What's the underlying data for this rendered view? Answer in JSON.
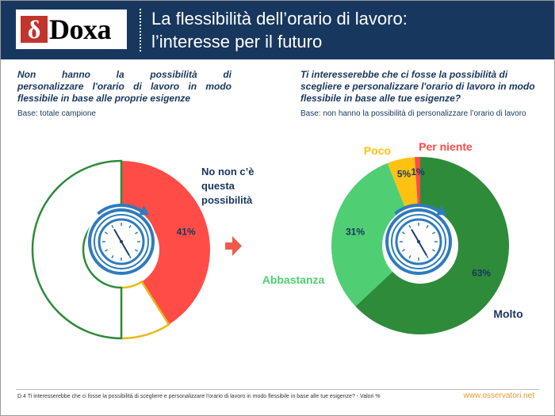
{
  "header": {
    "logo_text": "Doxa",
    "logo_glyph": "δ",
    "title_line1": "La flessibilità dell’orario di lavoro:",
    "title_line2": "l’interesse per il futuro"
  },
  "left_question": {
    "lines": [
      "Non hanno la possibilità di",
      "personalizzare l'orario di lavoro in modo",
      "flessibile in base alle proprie esigenze"
    ],
    "base": "Base: totale campione"
  },
  "right_question": {
    "line1": "Ti interesserebbe che ci fosse la possibilità di scegliere e personalizzare l'orario di lavoro in modo flessibile in base alle tue esigenze?",
    "base": "Base: non hanno la possibilità di personalizzare l’orario di lavoro"
  },
  "colors": {
    "navy": "#17375e",
    "red": "#ff4c47",
    "green_dark": "#2e8b3a",
    "green_light": "#4fce74",
    "yellow": "#fdc211",
    "clock": "#2f7bbd",
    "arrow": "#ee5b4e"
  },
  "chart_data": [
    {
      "type": "pie",
      "title": "",
      "slices": [
        {
          "label": "No non c’è questa possibilità",
          "value": 41,
          "value_label": "41%",
          "color": "#ff4c47"
        },
        {
          "label": "",
          "value": 9,
          "value_label": "",
          "color": "#ffffff",
          "outline": "#e8b81a"
        },
        {
          "label": "",
          "value": 50,
          "value_label": "",
          "color": "#ffffff",
          "outline": "#2e8b3a"
        }
      ]
    },
    {
      "type": "pie",
      "title": "",
      "slices": [
        {
          "label": "Molto",
          "value": 63,
          "value_label": "63%",
          "color": "#2e8b3a"
        },
        {
          "label": "Abbastanza",
          "value": 31,
          "value_label": "31%",
          "color": "#4fce74"
        },
        {
          "label": "Poco",
          "value": 5,
          "value_label": "5%",
          "color": "#fdc211"
        },
        {
          "label": "Per niente",
          "value": 1,
          "value_label": "1%",
          "color": "#ff4c47"
        }
      ]
    }
  ],
  "footer": {
    "note": "D.4 Ti interesserebbe che ci fosse la possibilità di scegliere e personalizzare l'orario di lavoro in modo flessibile in base alle tue esigenze? - Valori %",
    "url": "www.osservatori.net"
  }
}
